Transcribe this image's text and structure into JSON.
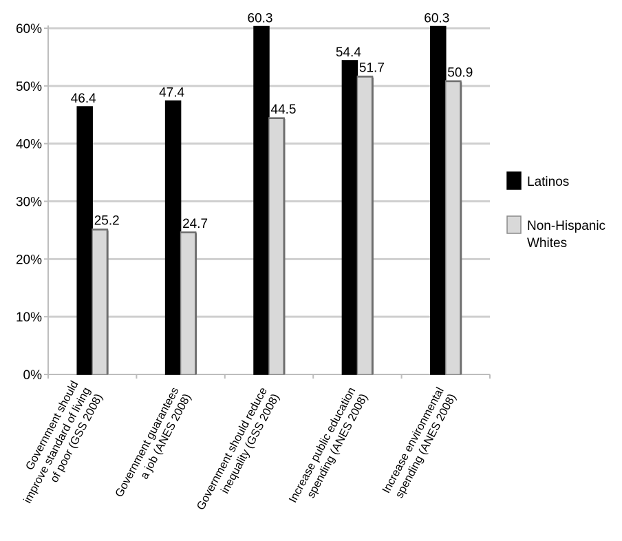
{
  "chart_data": {
    "type": "bar",
    "categories": [
      [
        "Government should",
        "improve standard of living",
        "of poor (GSS 2008)"
      ],
      [
        "Government guarantees",
        "a job (ANES 2008)"
      ],
      [
        "Government should reduce",
        "inequality (GSS 2008)"
      ],
      [
        "Increase public education",
        "spending (ANES 2008)"
      ],
      [
        "Increase environmental",
        "spending (ANES 2008)"
      ]
    ],
    "series": [
      {
        "name": "Latinos",
        "values": [
          46.4,
          47.4,
          60.3,
          54.4,
          60.3
        ],
        "color": "#000000"
      },
      {
        "name": [
          "Non-Hispanic",
          "Whites"
        ],
        "values": [
          25.2,
          24.7,
          44.5,
          51.7,
          50.9
        ],
        "color": "#d9d9d9"
      }
    ],
    "data_labels": [
      [
        "46.4",
        "47.4",
        "60.3",
        "54.4",
        "60.3"
      ],
      [
        "25.2",
        "24.7",
        "44.5",
        "51.7",
        "50.9"
      ]
    ],
    "yticks": [
      "0%",
      "10%",
      "20%",
      "30%",
      "40%",
      "50%",
      "60%"
    ],
    "ylim": [
      0,
      60
    ],
    "grid": true,
    "legend_position": "right"
  }
}
